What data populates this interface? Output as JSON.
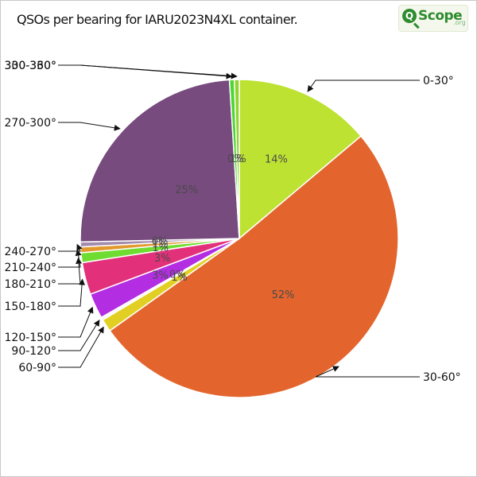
{
  "header": {
    "title": "QSOs per bearing for IARU2023N4XL container.",
    "logo_letter": "Q",
    "logo_word": "Scope",
    "logo_suffix": ".org"
  },
  "chart_data": {
    "type": "pie",
    "title": "QSOs per bearing for IARU2023N4XL container.",
    "categories": [
      "0-30°",
      "30-60°",
      "60-90°",
      "90-120°",
      "120-150°",
      "150-180°",
      "180-210°",
      "210-240°",
      "240-270°",
      "270-300°",
      "300-330°",
      "330-360°"
    ],
    "values": [
      14.0,
      51.8,
      1.3,
      0.3,
      2.6,
      3.3,
      1.0,
      0.6,
      0.5,
      24.6,
      0.5,
      0.5
    ],
    "labels": [
      "14%",
      "52%",
      "1%",
      "0%",
      "3%",
      "3%",
      "1%",
      "1%",
      "0%",
      "25%",
      "0%",
      "1%"
    ],
    "colors": [
      "#bde232",
      "#e3652d",
      "#e1d023",
      "#f7f7f4",
      "#b32ee2",
      "#e2317a",
      "#6fdc31",
      "#e29a2d",
      "#a38bad",
      "#774b7e",
      "#4cd633",
      "#92d42e"
    ],
    "legend": "callouts",
    "start": "top",
    "direction": "clockwise"
  }
}
